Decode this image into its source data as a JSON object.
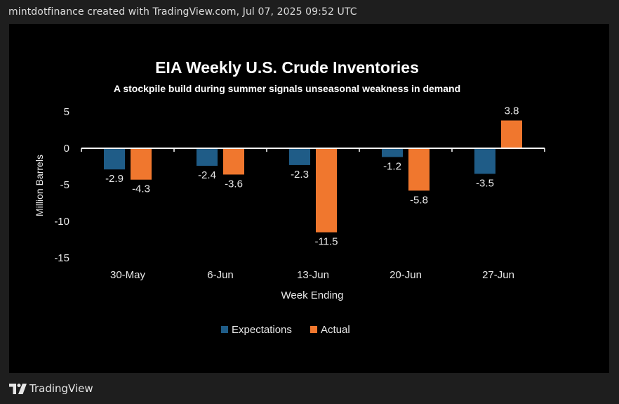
{
  "header": {
    "caption": "mintdotfinance created with TradingView.com, Jul 07, 2025 09:52 UTC"
  },
  "footer": {
    "brand": "TradingView",
    "logo_icon": "tradingview-logo-icon"
  },
  "colors": {
    "page_background": "#1e1e1e",
    "chart_background": "#000000",
    "expectations": "#1f5c87",
    "actual": "#f0772e",
    "text": "#ffffff",
    "axis_text": "#e8e8e8"
  },
  "chart_data": {
    "type": "bar",
    "title": "EIA Weekly U.S. Crude Inventories",
    "subtitle": "A stockpile build during  summer signals unseasonal weakness in demand",
    "xlabel": "Week Ending",
    "ylabel": "Million Barrels",
    "categories": [
      "30-May",
      "6-Jun",
      "13-Jun",
      "20-Jun",
      "27-Jun"
    ],
    "series": [
      {
        "name": "Expectations",
        "values": [
          -2.9,
          -2.4,
          -2.3,
          -1.2,
          -3.5
        ],
        "labels": [
          "-2.9",
          "-2.4",
          "-2.3",
          "-1.2",
          "-3.5"
        ]
      },
      {
        "name": "Actual",
        "values": [
          -4.3,
          -3.6,
          -11.5,
          -5.8,
          3.8
        ],
        "labels": [
          "-4.3",
          "-3.6",
          "-11.5",
          "-5.8",
          "3.8"
        ]
      }
    ],
    "yticks": [
      5,
      0,
      -5,
      -10,
      -15
    ],
    "ylim": [
      -15,
      5
    ],
    "grid": false,
    "legend": "bottom-center"
  }
}
